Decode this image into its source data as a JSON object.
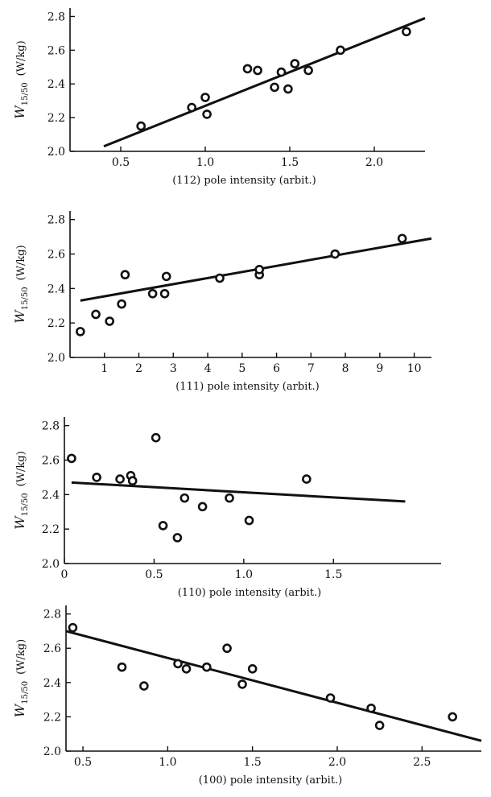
{
  "chart_data": [
    {
      "type": "scatter",
      "xlabel": "(112) pole intensity  (arbit.)",
      "ylabel_main": "W",
      "ylabel_sub": "15/50",
      "ylabel_unit": "(W/kg)",
      "xlim": [
        0.2,
        2.3
      ],
      "ylim": [
        2.0,
        2.85
      ],
      "xticks": [
        0.5,
        1.0,
        1.5,
        2.0
      ],
      "xtick_labels": [
        "0.5",
        "1.0",
        "1.5",
        "2.0"
      ],
      "yticks": [
        2.0,
        2.2,
        2.4,
        2.6,
        2.8
      ],
      "ytick_labels": [
        "2.0",
        "2.2",
        "2.4",
        "2.6",
        "2.8"
      ],
      "points": [
        {
          "x": 0.62,
          "y": 2.15
        },
        {
          "x": 0.92,
          "y": 2.26
        },
        {
          "x": 1.0,
          "y": 2.32
        },
        {
          "x": 1.01,
          "y": 2.22
        },
        {
          "x": 1.25,
          "y": 2.49
        },
        {
          "x": 1.31,
          "y": 2.48
        },
        {
          "x": 1.41,
          "y": 2.38
        },
        {
          "x": 1.45,
          "y": 2.47
        },
        {
          "x": 1.49,
          "y": 2.37
        },
        {
          "x": 1.53,
          "y": 2.52
        },
        {
          "x": 1.61,
          "y": 2.48
        },
        {
          "x": 1.8,
          "y": 2.6
        },
        {
          "x": 2.19,
          "y": 2.71
        }
      ],
      "fit_line": [
        {
          "x": 0.4,
          "y": 2.03
        },
        {
          "x": 2.3,
          "y": 2.79
        }
      ]
    },
    {
      "type": "scatter",
      "xlabel": "(111) pole intensity  (arbit.)",
      "ylabel_main": "W",
      "ylabel_sub": "15/50",
      "ylabel_unit": "(W/kg)",
      "xlim": [
        0,
        10.5
      ],
      "ylim": [
        2.0,
        2.85
      ],
      "xticks": [
        1,
        2,
        3,
        4,
        5,
        6,
        7,
        8,
        9,
        10
      ],
      "xtick_labels": [
        "1",
        "2",
        "3",
        "4",
        "5",
        "6",
        "7",
        "8",
        "9",
        "10"
      ],
      "yticks": [
        2.0,
        2.2,
        2.4,
        2.6,
        2.8
      ],
      "ytick_labels": [
        "2.0",
        "2.2",
        "2.4",
        "2.6",
        "2.8"
      ],
      "points": [
        {
          "x": 0.3,
          "y": 2.15
        },
        {
          "x": 0.75,
          "y": 2.25
        },
        {
          "x": 1.15,
          "y": 2.21
        },
        {
          "x": 1.5,
          "y": 2.31
        },
        {
          "x": 1.6,
          "y": 2.48
        },
        {
          "x": 2.4,
          "y": 2.37
        },
        {
          "x": 2.75,
          "y": 2.37
        },
        {
          "x": 2.8,
          "y": 2.47
        },
        {
          "x": 4.35,
          "y": 2.46
        },
        {
          "x": 5.5,
          "y": 2.48
        },
        {
          "x": 5.5,
          "y": 2.51
        },
        {
          "x": 7.7,
          "y": 2.6
        },
        {
          "x": 9.65,
          "y": 2.69
        }
      ],
      "fit_line": [
        {
          "x": 0.3,
          "y": 2.33
        },
        {
          "x": 10.5,
          "y": 2.69
        }
      ]
    },
    {
      "type": "scatter",
      "xlabel": "(110) pole intensity  (arbit.)",
      "ylabel_main": "W",
      "ylabel_sub": "15/50",
      "ylabel_unit": "(W/kg)",
      "xlim": [
        0,
        2.1
      ],
      "ylim": [
        2.0,
        2.85
      ],
      "xticks": [
        0,
        0.5,
        1.0,
        1.5
      ],
      "xtick_labels": [
        "0",
        "0.5",
        "1.0",
        "1.5"
      ],
      "yticks": [
        2.0,
        2.2,
        2.4,
        2.6,
        2.8
      ],
      "ytick_labels": [
        "2.0",
        "2.2",
        "2.4",
        "2.6",
        "2.8"
      ],
      "points": [
        {
          "x": 0.04,
          "y": 2.61
        },
        {
          "x": 0.18,
          "y": 2.5
        },
        {
          "x": 0.31,
          "y": 2.49
        },
        {
          "x": 0.37,
          "y": 2.51
        },
        {
          "x": 0.38,
          "y": 2.48
        },
        {
          "x": 0.51,
          "y": 2.73
        },
        {
          "x": 0.55,
          "y": 2.22
        },
        {
          "x": 0.63,
          "y": 2.15
        },
        {
          "x": 0.67,
          "y": 2.38
        },
        {
          "x": 0.77,
          "y": 2.33
        },
        {
          "x": 0.92,
          "y": 2.38
        },
        {
          "x": 1.03,
          "y": 2.25
        },
        {
          "x": 1.35,
          "y": 2.49
        }
      ],
      "fit_line": [
        {
          "x": 0.04,
          "y": 2.47
        },
        {
          "x": 1.9,
          "y": 2.36
        }
      ]
    },
    {
      "type": "scatter",
      "xlabel": "(100) pole intensity  (arbit.)",
      "ylabel_main": "W",
      "ylabel_sub": "15/50",
      "ylabel_unit": "(W/kg)",
      "xlim": [
        0.4,
        2.85
      ],
      "ylim": [
        2.0,
        2.85
      ],
      "xticks": [
        0.5,
        1.0,
        1.5,
        2.0,
        2.5
      ],
      "xtick_labels": [
        "0.5",
        "1.0",
        "1.5",
        "2.0",
        "2.5"
      ],
      "yticks": [
        2.0,
        2.2,
        2.4,
        2.6,
        2.8
      ],
      "ytick_labels": [
        "2.0",
        "2.2",
        "2.4",
        "2.6",
        "2.8"
      ],
      "points": [
        {
          "x": 0.44,
          "y": 2.72
        },
        {
          "x": 0.73,
          "y": 2.49
        },
        {
          "x": 0.86,
          "y": 2.38
        },
        {
          "x": 1.06,
          "y": 2.51
        },
        {
          "x": 1.11,
          "y": 2.48
        },
        {
          "x": 1.23,
          "y": 2.49
        },
        {
          "x": 1.35,
          "y": 2.6
        },
        {
          "x": 1.44,
          "y": 2.39
        },
        {
          "x": 1.5,
          "y": 2.48
        },
        {
          "x": 1.96,
          "y": 2.31
        },
        {
          "x": 2.2,
          "y": 2.25
        },
        {
          "x": 2.25,
          "y": 2.15
        },
        {
          "x": 2.68,
          "y": 2.2
        }
      ],
      "fit_line": [
        {
          "x": 0.4,
          "y": 2.7
        },
        {
          "x": 2.85,
          "y": 2.06
        }
      ]
    }
  ]
}
